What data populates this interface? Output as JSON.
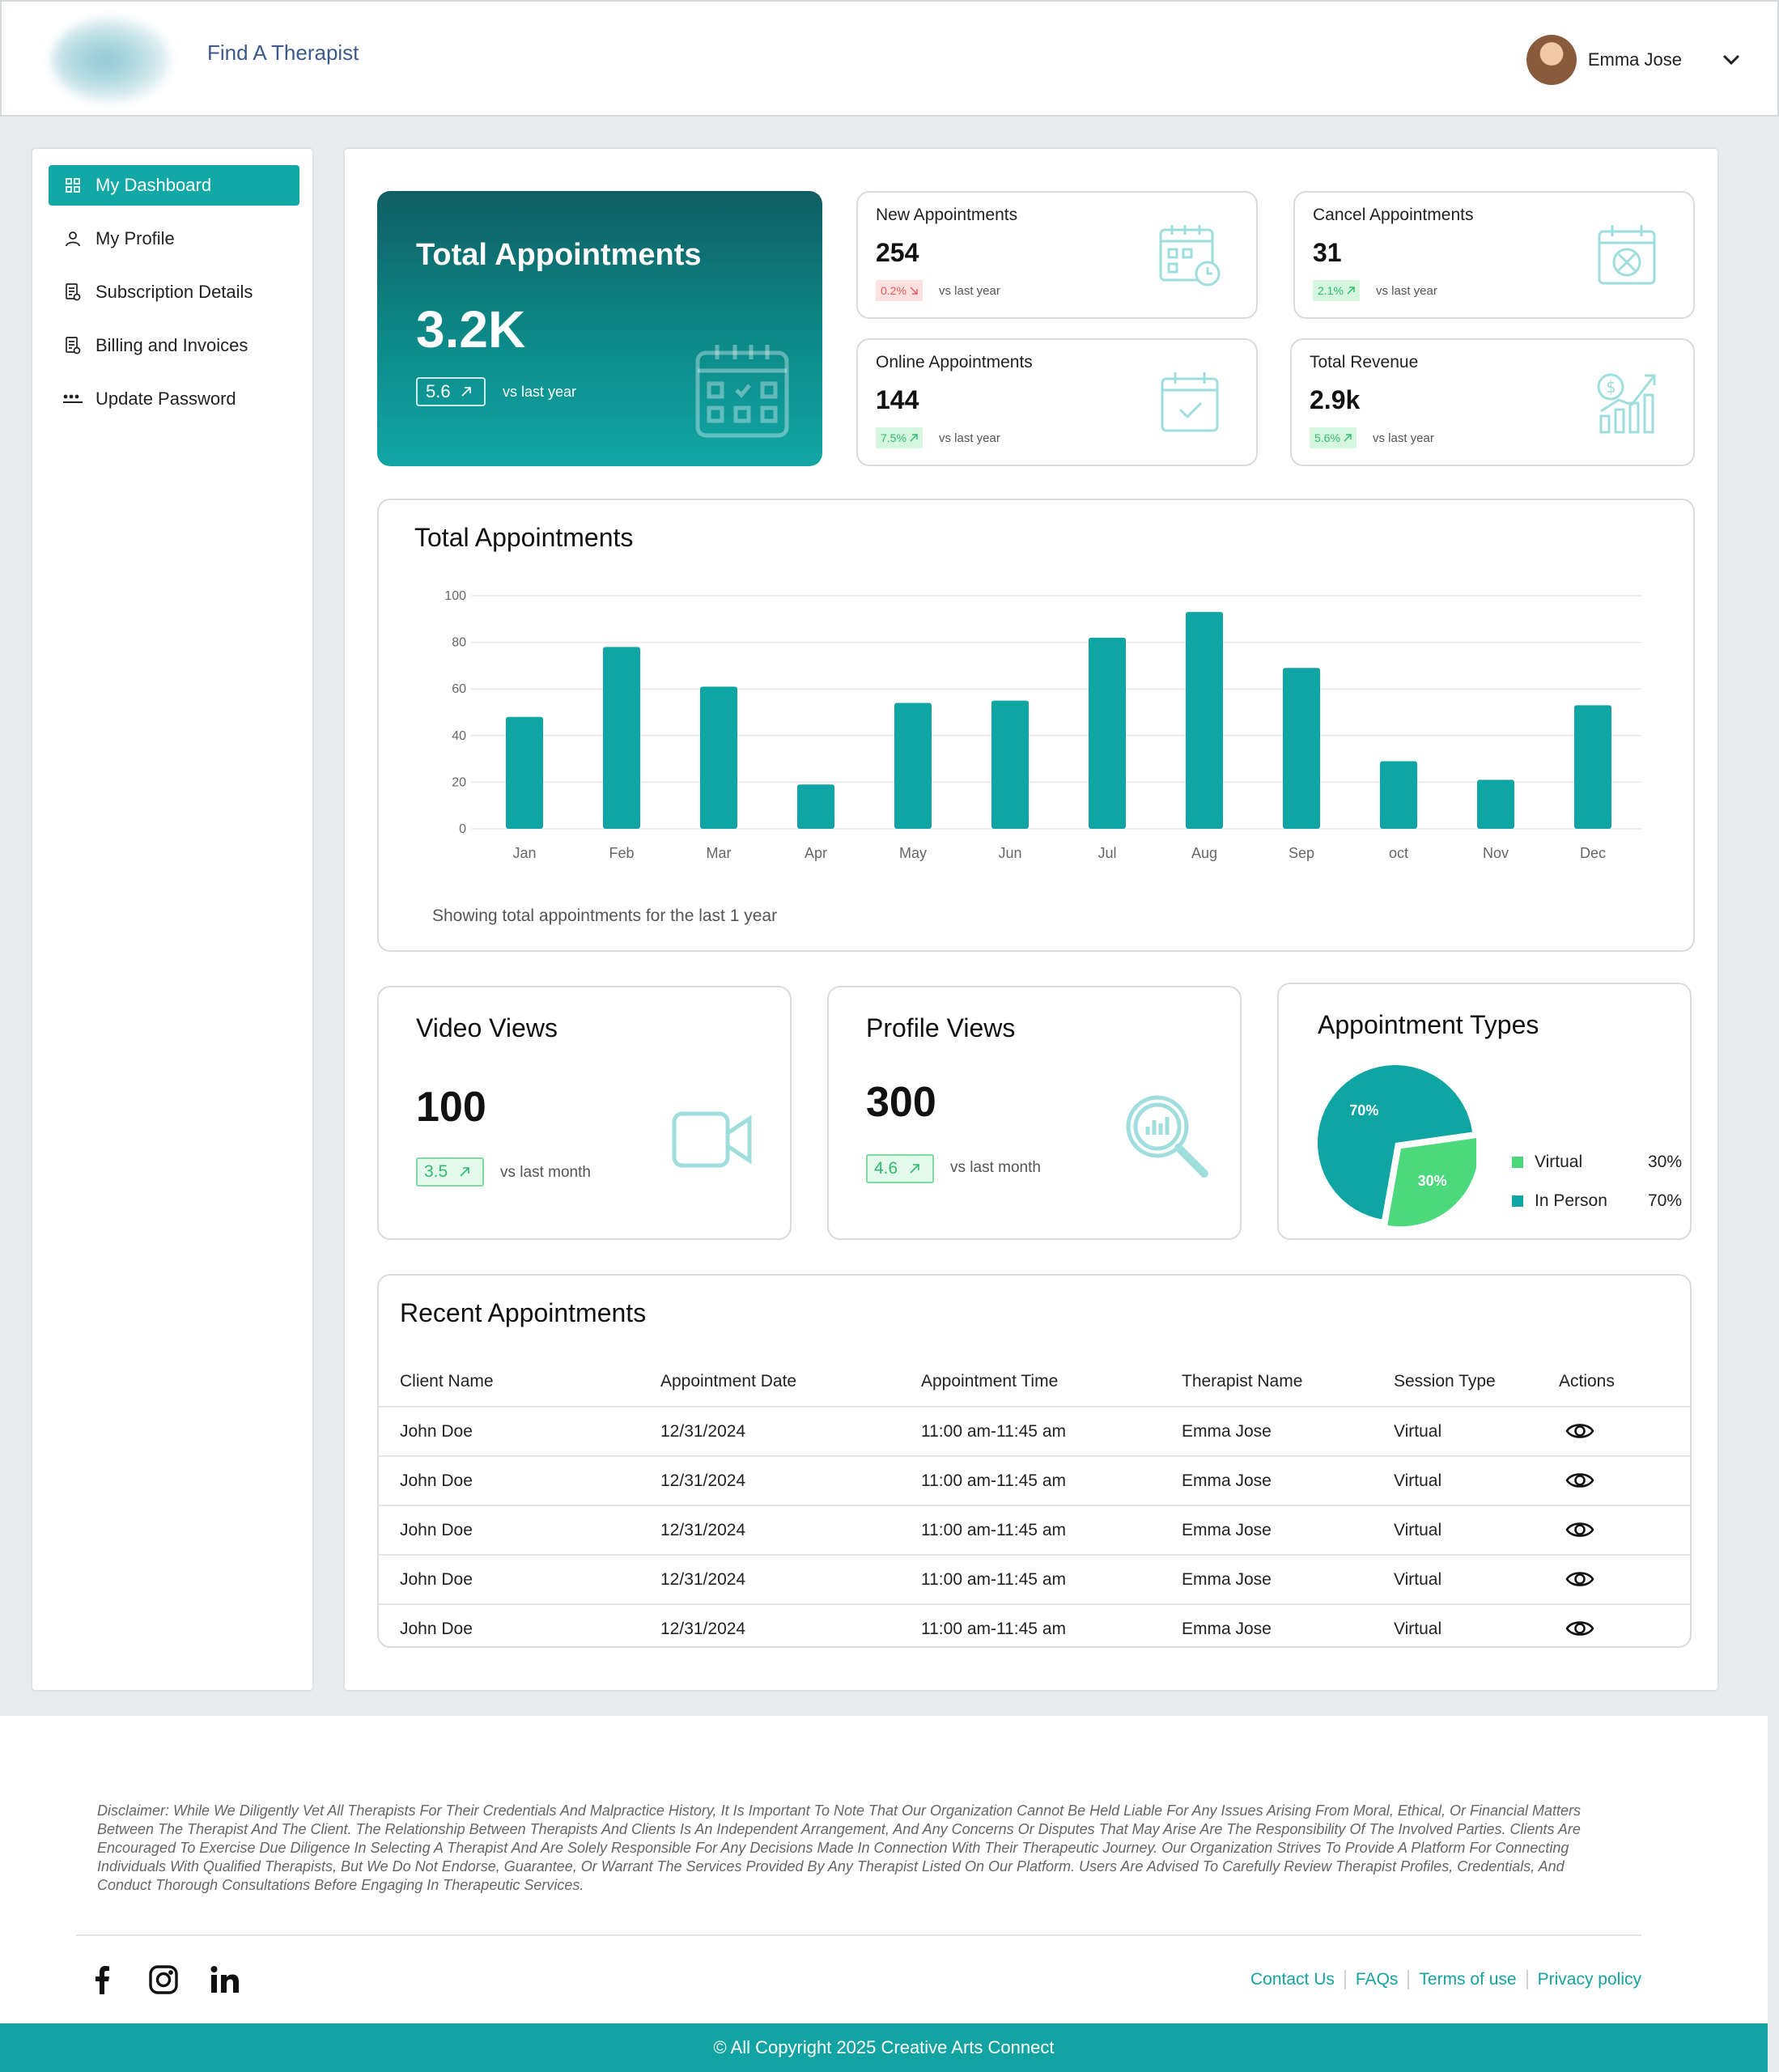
{
  "header": {
    "brand": "Find A Therapist",
    "user_name": "Emma Jose"
  },
  "sidebar": {
    "items": [
      {
        "label": "My Dashboard",
        "icon": "grid-icon",
        "active": true
      },
      {
        "label": "My Profile",
        "icon": "user-icon"
      },
      {
        "label": "Subscription Details",
        "icon": "document-icon"
      },
      {
        "label": "Billing and Invoices",
        "icon": "invoice-icon"
      },
      {
        "label": "Update Password",
        "icon": "password-icon"
      }
    ]
  },
  "hero": {
    "title": "Total Appointments",
    "value": "3.2K",
    "badge": "5.6",
    "note": "vs last year"
  },
  "stats": [
    {
      "label": "New Appointments",
      "value": "254",
      "badge": "0.2%",
      "trend": "down",
      "note": "vs last year",
      "icon": "calendar-clock-icon"
    },
    {
      "label": "Cancel Appointments",
      "value": "31",
      "badge": "2.1%",
      "trend": "up",
      "note": "vs last year",
      "icon": "calendar-cancel-icon"
    },
    {
      "label": "Online Appointments",
      "value": "144",
      "badge": "7.5%",
      "trend": "up",
      "note": "vs last year",
      "icon": "calendar-check-icon"
    },
    {
      "label": "Total Revenue",
      "value": "2.9k",
      "badge": "5.6%",
      "trend": "up",
      "note": "vs last year",
      "icon": "revenue-chart-icon"
    }
  ],
  "chart_section": {
    "title": "Total Appointments",
    "footnote": "Showing total appointments for the last 1 year"
  },
  "chart_data": {
    "type": "bar",
    "categories": [
      "Jan",
      "Feb",
      "Mar",
      "Apr",
      "May",
      "Jun",
      "Jul",
      "Aug",
      "Sep",
      "oct",
      "Nov",
      "Dec"
    ],
    "values": [
      48,
      78,
      61,
      19,
      54,
      55,
      82,
      93,
      69,
      29,
      21,
      53
    ],
    "ylim": [
      0,
      100
    ],
    "yticks": [
      "0",
      "20",
      "40",
      "60",
      "80",
      "100"
    ],
    "color": "#0fa5a2",
    "grid": true
  },
  "video_views": {
    "title": "Video Views",
    "value": "100",
    "badge": "3.5",
    "note": "vs last month"
  },
  "profile_views": {
    "title": "Profile Views",
    "value": "300",
    "badge": "4.6",
    "note": "vs last month"
  },
  "appointment_types": {
    "title": "Appointment Types",
    "slices": [
      {
        "label": "Virtual",
        "percent": "30%",
        "value": 30,
        "color": "#4cd97b"
      },
      {
        "label": "In Person",
        "percent": "70%",
        "value": 70,
        "color": "#0fa5a2"
      }
    ]
  },
  "recent": {
    "title": "Recent Appointments",
    "columns": [
      "Client Name",
      "Appointment Date",
      "Appointment Time",
      "Therapist Name",
      "Session Type",
      "Actions"
    ],
    "rows": [
      [
        "John Doe",
        "12/31/2024",
        "11:00 am-11:45 am",
        "Emma Jose",
        "Virtual"
      ],
      [
        "John Doe",
        "12/31/2024",
        "11:00 am-11:45 am",
        "Emma Jose",
        "Virtual"
      ],
      [
        "John Doe",
        "12/31/2024",
        "11:00 am-11:45 am",
        "Emma Jose",
        "Virtual"
      ],
      [
        "John Doe",
        "12/31/2024",
        "11:00 am-11:45 am",
        "Emma Jose",
        "Virtual"
      ],
      [
        "John Doe",
        "12/31/2024",
        "11:00 am-11:45 am",
        "Emma Jose",
        "Virtual"
      ]
    ]
  },
  "footer": {
    "disclaimer": "Disclaimer: While We Diligently Vet All Therapists For Their Credentials And Malpractice History, It Is Important To Note That Our Organization Cannot Be Held Liable For Any Issues Arising From Moral, Ethical, Or Financial Matters Between The Therapist And The Client. The Relationship Between Therapists And Clients Is An Independent Arrangement, And Any Concerns Or Disputes That May Arise Are The Responsibility Of The Involved Parties. Clients Are Encouraged To Exercise Due Diligence In Selecting A Therapist And Are Solely Responsible For Any Decisions Made In Connection With Their Therapeutic Journey. Our Organization Strives To Provide A Platform For Connecting Individuals With Qualified Therapists, But We Do Not Endorse, Guarantee, Or Warrant The Services Provided By Any Therapist Listed On Our Platform. Users Are Advised To Carefully Review Therapist Profiles, Credentials, And Conduct Thorough Consultations Before Engaging In Therapeutic Services.",
    "links": [
      "Contact Us",
      "FAQs",
      "Terms of use",
      "Privacy policy"
    ],
    "copyright": "© All Copyright 2025 Creative Arts Connect"
  }
}
